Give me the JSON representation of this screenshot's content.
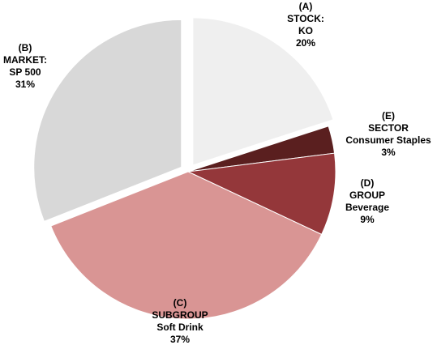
{
  "chart_data": {
    "type": "pie",
    "title": "",
    "slices": [
      {
        "letter": "(A)",
        "category": "STOCK:",
        "name": "KO",
        "percent_label": "20%",
        "value": 20,
        "color": "#efefef",
        "exploded": true
      },
      {
        "letter": "(E)",
        "category": "SECTOR",
        "name": "Consumer Staples",
        "percent_label": "3%",
        "value": 3,
        "color": "#5a1f1f",
        "exploded": false
      },
      {
        "letter": "(D)",
        "category": "GROUP",
        "name": "Beverage",
        "percent_label": "9%",
        "value": 9,
        "color": "#94373a",
        "exploded": false
      },
      {
        "letter": "(C)",
        "category": "SUBGROUP",
        "name": "Soft Drink",
        "percent_label": "37%",
        "value": 37,
        "color": "#d99594",
        "exploded": false
      },
      {
        "letter": "(B)",
        "category": "MARKET:",
        "name": "SP 500",
        "percent_label": "31%",
        "value": 31,
        "color": "#d8d8d8",
        "exploded": true
      }
    ]
  }
}
